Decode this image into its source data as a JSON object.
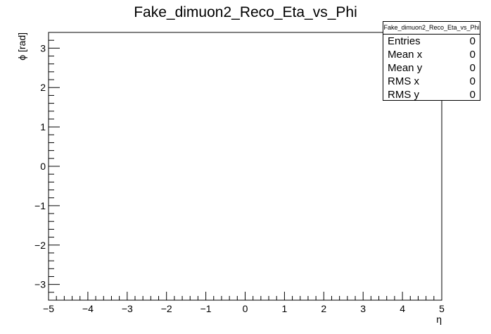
{
  "chart_data": {
    "type": "heatmap",
    "title": "Fake_dimuon2_Reco_Eta_vs_Phi",
    "xlabel": "η",
    "ylabel": "ϕ [rad]",
    "xlim": [
      -5,
      5
    ],
    "ylim": [
      -3.4,
      3.4
    ],
    "xticks": [
      {
        "value": -5,
        "label": "−5"
      },
      {
        "value": -4,
        "label": "−4"
      },
      {
        "value": -3,
        "label": "−3"
      },
      {
        "value": -2,
        "label": "−2"
      },
      {
        "value": -1,
        "label": "−1"
      },
      {
        "value": 0,
        "label": "0"
      },
      {
        "value": 1,
        "label": "1"
      },
      {
        "value": 2,
        "label": "2"
      },
      {
        "value": 3,
        "label": "3"
      },
      {
        "value": 4,
        "label": "4"
      },
      {
        "value": 5,
        "label": "5"
      }
    ],
    "yticks": [
      {
        "value": -3,
        "label": "−3"
      },
      {
        "value": -2,
        "label": "−2"
      },
      {
        "value": -1,
        "label": "−1"
      },
      {
        "value": 0,
        "label": "0"
      },
      {
        "value": 1,
        "label": "1"
      },
      {
        "value": 2,
        "label": "2"
      },
      {
        "value": 3,
        "label": "3"
      }
    ],
    "values": [],
    "grid": false
  },
  "stats": {
    "title": "Fake_dimuon2_Reco_Eta_vs_Phi",
    "rows": [
      {
        "key": "Entries",
        "value": "0"
      },
      {
        "key": "Mean x",
        "value": "0"
      },
      {
        "key": "Mean y",
        "value": "0"
      },
      {
        "key": "RMS x",
        "value": "0"
      },
      {
        "key": "RMS y",
        "value": "0"
      }
    ]
  }
}
